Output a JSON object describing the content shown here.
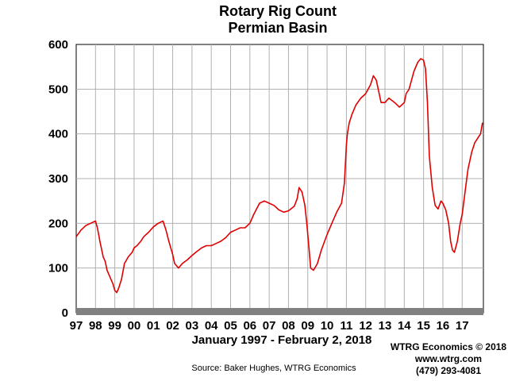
{
  "chart_data": {
    "type": "line",
    "title": "Rotary Rig Count",
    "subtitle": "Permian Basin",
    "xlabel": "January 1997 - February 2, 2018",
    "ylabel": "",
    "xlim": [
      1997.0,
      2018.1
    ],
    "ylim": [
      0,
      600
    ],
    "yticks": [
      0,
      100,
      200,
      300,
      400,
      500,
      600
    ],
    "xtick_labels": [
      "97",
      "98",
      "99",
      "00",
      "01",
      "02",
      "03",
      "04",
      "05",
      "06",
      "07",
      "08",
      "09",
      "10",
      "11",
      "12",
      "13",
      "14",
      "15",
      "16",
      "17"
    ],
    "grid": true,
    "line_color": "#e00000",
    "x": [
      1997.0,
      1997.25,
      1997.5,
      1997.75,
      1998.0,
      1998.1,
      1998.25,
      1998.4,
      1998.5,
      1998.6,
      1998.75,
      1998.9,
      1999.0,
      1999.1,
      1999.2,
      1999.35,
      1999.5,
      1999.7,
      1999.9,
      2000.0,
      2000.15,
      2000.35,
      2000.5,
      2000.75,
      2001.0,
      2001.25,
      2001.5,
      2001.65,
      2001.8,
      2002.0,
      2002.1,
      2002.3,
      2002.5,
      2002.75,
      2003.0,
      2003.2,
      2003.5,
      2003.75,
      2004.0,
      2004.25,
      2004.5,
      2004.75,
      2005.0,
      2005.25,
      2005.5,
      2005.75,
      2006.0,
      2006.2,
      2006.5,
      2006.75,
      2007.0,
      2007.25,
      2007.5,
      2007.75,
      2008.0,
      2008.3,
      2008.45,
      2008.55,
      2008.7,
      2008.85,
      2008.95,
      2009.05,
      2009.15,
      2009.3,
      2009.5,
      2009.7,
      2010.0,
      2010.25,
      2010.5,
      2010.75,
      2010.9,
      2011.0,
      2011.05,
      2011.15,
      2011.3,
      2011.5,
      2011.75,
      2012.0,
      2012.25,
      2012.4,
      2012.55,
      2012.65,
      2012.8,
      2013.0,
      2013.2,
      2013.5,
      2013.75,
      2014.0,
      2014.1,
      2014.25,
      2014.5,
      2014.7,
      2014.85,
      2015.0,
      2015.1,
      2015.2,
      2015.3,
      2015.45,
      2015.6,
      2015.75,
      2015.9,
      2016.0,
      2016.15,
      2016.3,
      2016.4,
      2016.5,
      2016.6,
      2016.75,
      2016.9,
      2017.0,
      2017.15,
      2017.3,
      2017.5,
      2017.65,
      2017.8,
      2017.95,
      2018.05
    ],
    "y": [
      170,
      185,
      195,
      200,
      205,
      190,
      155,
      125,
      115,
      95,
      80,
      65,
      50,
      45,
      55,
      75,
      110,
      125,
      135,
      145,
      150,
      160,
      170,
      180,
      192,
      200,
      205,
      185,
      160,
      130,
      110,
      100,
      110,
      118,
      128,
      135,
      145,
      150,
      150,
      155,
      160,
      168,
      180,
      185,
      190,
      190,
      200,
      220,
      245,
      250,
      245,
      240,
      230,
      225,
      228,
      238,
      255,
      280,
      270,
      240,
      200,
      150,
      100,
      95,
      110,
      140,
      175,
      200,
      225,
      245,
      290,
      375,
      400,
      425,
      445,
      465,
      480,
      490,
      510,
      530,
      520,
      500,
      470,
      470,
      480,
      470,
      460,
      470,
      490,
      500,
      540,
      560,
      568,
      565,
      545,
      470,
      350,
      280,
      240,
      232,
      250,
      245,
      230,
      200,
      160,
      140,
      135,
      160,
      200,
      220,
      270,
      320,
      360,
      380,
      390,
      400,
      425
    ]
  },
  "footer": {
    "source": "Source: Baker Hughes, WTRG Economics",
    "credit_line1": "WTRG Economics © 2018",
    "credit_line2": "www.wtrg.com",
    "credit_line3": "(479) 293-4081"
  }
}
